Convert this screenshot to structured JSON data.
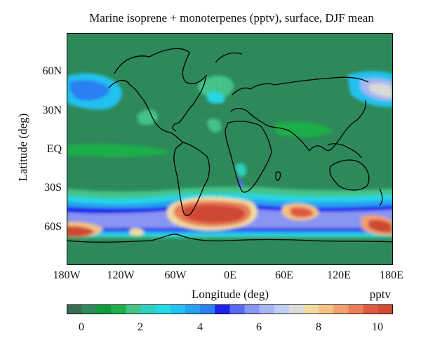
{
  "title": "Marine isoprene + monoterpenes (pptv), surface, DJF mean",
  "axes": {
    "ylabel": "Latitude (deg)",
    "xlabel": "Longitude (deg)",
    "yticks": [
      {
        "label": "60N",
        "lat": 60
      },
      {
        "label": "30N",
        "lat": 30
      },
      {
        "label": "EQ",
        "lat": 0
      },
      {
        "label": "30S",
        "lat": -30
      },
      {
        "label": "60S",
        "lat": -60
      }
    ],
    "xticks": [
      {
        "label": "180W",
        "lon": -180
      },
      {
        "label": "120W",
        "lon": -120
      },
      {
        "label": "60W",
        "lon": -60
      },
      {
        "label": "0E",
        "lon": 0
      },
      {
        "label": "60E",
        "lon": 60
      },
      {
        "label": "120E",
        "lon": 120
      },
      {
        "label": "180E",
        "lon": 180
      }
    ],
    "lat_range": [
      -90,
      90
    ],
    "lon_range": [
      -180,
      180
    ]
  },
  "colorbar": {
    "unit": "pptv",
    "ticks": [
      "0",
      "2",
      "4",
      "6",
      "8",
      "10"
    ],
    "range": [
      -1.5,
      11
    ],
    "colors": [
      "#3a6a52",
      "#2e8a5a",
      "#0f9a3c",
      "#1eb04a",
      "#45c488",
      "#2fd0c0",
      "#27d8e6",
      "#23c2f0",
      "#2aa0f4",
      "#2c80f4",
      "#1f1fee",
      "#5a6af4",
      "#8a96f4",
      "#a8b6f4",
      "#c2cef2",
      "#dcdcd6",
      "#f0dca2",
      "#f4c282",
      "#f2a06e",
      "#ec7e58",
      "#e05a40",
      "#d04a36"
    ]
  },
  "colors": {
    "ocean_background": "#2e8a5a",
    "land": "#2e8a5a",
    "coastline": "#000000"
  }
}
